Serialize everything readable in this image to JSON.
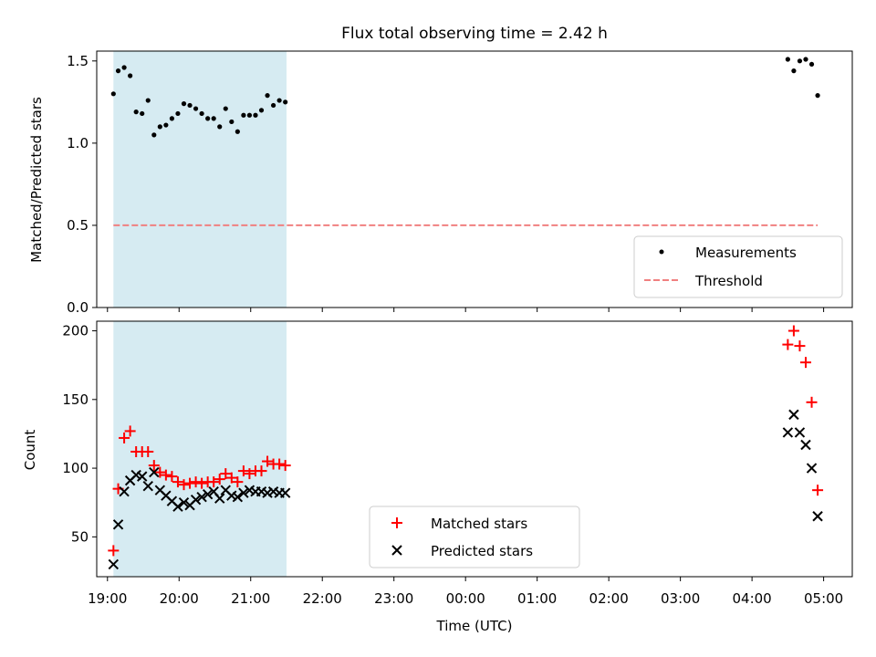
{
  "figure": {
    "title": "Flux total observing time = 2.42 h",
    "xlabel": "Time (UTC)"
  },
  "chart_data": [
    {
      "type": "scatter",
      "panel": "top",
      "ylabel": "Matched/Predicted stars",
      "xlim": [
        "18:51",
        "05:24"
      ],
      "ylim": [
        0,
        1.56
      ],
      "yticks": [
        0.0,
        0.5,
        1.0,
        1.5
      ],
      "ytick_labels": [
        "0.0",
        "0.5",
        "1.0",
        "1.5"
      ],
      "shaded_region": {
        "start": "19:05",
        "end": "21:30",
        "color": "#add8e6"
      },
      "legend_position": "lower right",
      "grid": false,
      "series": [
        {
          "name": "Measurements",
          "style": "dot",
          "color": "#000000",
          "x": [
            "19:05",
            "19:09",
            "19:14",
            "19:19",
            "19:24",
            "19:29",
            "19:34",
            "19:39",
            "19:44",
            "19:49",
            "19:54",
            "19:59",
            "20:04",
            "20:09",
            "20:14",
            "20:19",
            "20:24",
            "20:29",
            "20:34",
            "20:39",
            "20:44",
            "20:49",
            "20:54",
            "20:59",
            "21:04",
            "21:09",
            "21:14",
            "21:19",
            "21:24",
            "21:29",
            "04:30",
            "04:35",
            "04:40",
            "04:45",
            "04:50",
            "04:55"
          ],
          "y": [
            1.3,
            1.44,
            1.46,
            1.41,
            1.19,
            1.18,
            1.26,
            1.05,
            1.1,
            1.11,
            1.15,
            1.18,
            1.24,
            1.23,
            1.21,
            1.18,
            1.15,
            1.15,
            1.1,
            1.21,
            1.13,
            1.07,
            1.17,
            1.17,
            1.17,
            1.2,
            1.29,
            1.23,
            1.26,
            1.25,
            1.51,
            1.44,
            1.5,
            1.51,
            1.48,
            1.29
          ]
        },
        {
          "name": "Threshold",
          "style": "dashed-line",
          "color": "#f08080",
          "x": [
            "19:05",
            "04:55"
          ],
          "y": [
            0.5,
            0.5
          ]
        }
      ]
    },
    {
      "type": "scatter",
      "panel": "bottom",
      "ylabel": "Count",
      "xlim": [
        "18:51",
        "05:24"
      ],
      "ylim": [
        21,
        207
      ],
      "yticks": [
        50,
        100,
        150,
        200
      ],
      "ytick_labels": [
        "50",
        "100",
        "150",
        "200"
      ],
      "xticks": [
        "19:00",
        "20:00",
        "21:00",
        "22:00",
        "23:00",
        "00:00",
        "01:00",
        "02:00",
        "03:00",
        "04:00",
        "05:00"
      ],
      "shaded_region": {
        "start": "19:05",
        "end": "21:30",
        "color": "#add8e6"
      },
      "legend_position": "lower center",
      "grid": false,
      "series": [
        {
          "name": "Matched stars",
          "style": "plus",
          "color": "#ff0000",
          "x": [
            "19:05",
            "19:09",
            "19:14",
            "19:19",
            "19:24",
            "19:29",
            "19:34",
            "19:39",
            "19:44",
            "19:49",
            "19:54",
            "19:59",
            "20:04",
            "20:09",
            "20:14",
            "20:19",
            "20:24",
            "20:29",
            "20:34",
            "20:39",
            "20:44",
            "20:49",
            "20:54",
            "20:59",
            "21:04",
            "21:09",
            "21:14",
            "21:19",
            "21:24",
            "21:29",
            "04:30",
            "04:35",
            "04:40",
            "04:45",
            "04:50",
            "04:55"
          ],
          "y": [
            40,
            85,
            122,
            127,
            112,
            112,
            112,
            102,
            97,
            95,
            94,
            90,
            88,
            89,
            90,
            89,
            90,
            90,
            92,
            96,
            93,
            90,
            98,
            96,
            98,
            98,
            105,
            103,
            103,
            102,
            190,
            200,
            189,
            177,
            148,
            84
          ]
        },
        {
          "name": "Predicted stars",
          "style": "x",
          "color": "#000000",
          "x": [
            "19:05",
            "19:09",
            "19:14",
            "19:19",
            "19:24",
            "19:29",
            "19:34",
            "19:39",
            "19:44",
            "19:49",
            "19:54",
            "19:59",
            "20:04",
            "20:09",
            "20:14",
            "20:19",
            "20:24",
            "20:29",
            "20:34",
            "20:39",
            "20:44",
            "20:49",
            "20:54",
            "20:59",
            "21:04",
            "21:09",
            "21:14",
            "21:19",
            "21:24",
            "21:29",
            "04:30",
            "04:35",
            "04:40",
            "04:45",
            "04:50",
            "04:55"
          ],
          "y": [
            30,
            59,
            83,
            91,
            95,
            94,
            87,
            97,
            84,
            80,
            76,
            72,
            75,
            73,
            77,
            79,
            81,
            83,
            78,
            84,
            80,
            79,
            82,
            84,
            83,
            83,
            82,
            83,
            82,
            82,
            126,
            139,
            126,
            117,
            100,
            65
          ]
        }
      ]
    }
  ]
}
